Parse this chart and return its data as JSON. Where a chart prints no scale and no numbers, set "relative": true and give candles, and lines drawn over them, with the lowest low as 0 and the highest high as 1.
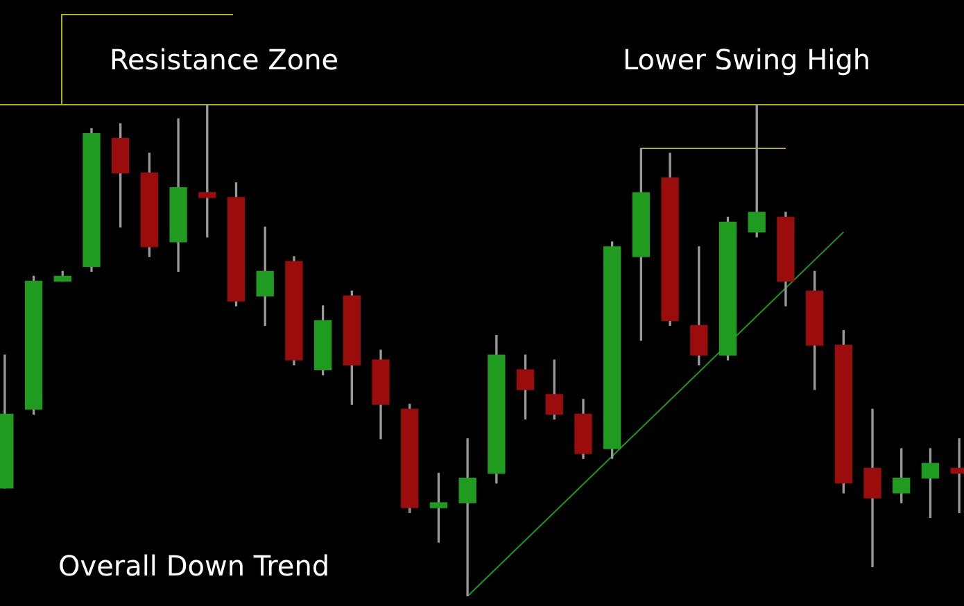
{
  "chart_data": {
    "type": "candlestick",
    "relative": true,
    "categories": [
      null,
      null,
      null,
      null,
      null,
      null,
      null,
      null,
      null,
      null,
      null,
      null,
      null,
      null,
      null,
      null,
      null,
      null,
      null,
      null,
      null,
      null,
      null,
      null,
      null,
      null,
      null,
      null,
      null,
      null,
      null,
      null,
      null,
      null
    ],
    "ohlc": [
      [
        0.22,
        0.49,
        0.22,
        0.37
      ],
      [
        0.38,
        0.65,
        0.37,
        0.64
      ],
      [
        0.64,
        0.66,
        0.64,
        0.65
      ],
      [
        0.67,
        0.95,
        0.66,
        0.94
      ],
      [
        0.93,
        0.96,
        0.75,
        0.86
      ],
      [
        0.86,
        0.9,
        0.69,
        0.71
      ],
      [
        0.72,
        0.97,
        0.66,
        0.83
      ],
      [
        0.82,
        1,
        0.73,
        0.81
      ],
      [
        0.81,
        0.84,
        0.59,
        0.6
      ],
      [
        0.61,
        0.75,
        0.55,
        0.66
      ],
      [
        0.68,
        0.69,
        0.47,
        0.48
      ],
      [
        0.46,
        0.59,
        0.45,
        0.56
      ],
      [
        0.61,
        0.62,
        0.39,
        0.47
      ],
      [
        0.48,
        0.5,
        0.32,
        0.39
      ],
      [
        0.38,
        0.39,
        0.17,
        0.18
      ],
      [
        0.18,
        0.25,
        0.11,
        0.19
      ],
      [
        0.19,
        0.32,
        0,
        0.24
      ],
      [
        0.25,
        0.53,
        0.23,
        0.49
      ],
      [
        0.46,
        0.49,
        0.36,
        0.42
      ],
      [
        0.41,
        0.48,
        0.36,
        0.37
      ],
      [
        0.37,
        0.4,
        0.28,
        0.29
      ],
      [
        0.3,
        0.72,
        0.28,
        0.71
      ],
      [
        0.69,
        0.91,
        0.52,
        0.82
      ],
      [
        0.85,
        0.9,
        0.55,
        0.56
      ],
      [
        0.55,
        0.71,
        0.47,
        0.49
      ],
      [
        0.49,
        0.77,
        0.48,
        0.76
      ],
      [
        0.74,
        1,
        0.73,
        0.78
      ],
      [
        0.77,
        0.78,
        0.59,
        0.64
      ],
      [
        0.62,
        0.66,
        0.42,
        0.51
      ],
      [
        0.51,
        0.54,
        0.21,
        0.23
      ],
      [
        0.26,
        0.38,
        0.06,
        0.2
      ],
      [
        0.21,
        0.3,
        0.19,
        0.24
      ],
      [
        0.24,
        0.3,
        0.16,
        0.27
      ],
      [
        0.26,
        0.32,
        0.17,
        0.25
      ]
    ],
    "colors": [
      "#1f9c1f",
      "#1f9c1f",
      "#1f9c1f",
      "#1f9c1f",
      "#9b0c0c",
      "#9b0c0c",
      "#1f9c1f",
      "#9b0c0c",
      "#9b0c0c",
      "#1f9c1f",
      "#9b0c0c",
      "#1f9c1f",
      "#9b0c0c",
      "#9b0c0c",
      "#9b0c0c",
      "#1f9c1f",
      "#1f9c1f",
      "#1f9c1f",
      "#9b0c0c",
      "#9b0c0c",
      "#9b0c0c",
      "#1f9c1f",
      "#1f9c1f",
      "#9b0c0c",
      "#9b0c0c",
      "#1f9c1f",
      "#1f9c1f",
      "#9b0c0c",
      "#9b0c0c",
      "#9b0c0c",
      "#9b0c0c",
      "#1f9c1f",
      "#1f9c1f",
      "#9b0c0c"
    ],
    "series": [
      {
        "type": "line",
        "color": "#1a9a1a",
        "values": [
          null,
          null,
          null,
          null,
          null,
          null,
          null,
          null,
          null,
          null,
          null,
          null,
          null,
          null,
          null,
          null,
          0,
          null,
          null,
          null,
          null,
          null,
          null,
          null,
          null,
          null,
          null,
          null,
          null,
          0.74,
          null,
          null,
          null,
          null
        ]
      },
      {
        "type": "line",
        "color": "#b4b400",
        "values": [
          null,
          null,
          null,
          null,
          null,
          null,
          null,
          null,
          null,
          null,
          null,
          null,
          null,
          null,
          null,
          null,
          null,
          null,
          null,
          null,
          null,
          null,
          0.91,
          null,
          null,
          null,
          null,
          0.91,
          null,
          null,
          null,
          null,
          null,
          null
        ]
      }
    ],
    "ref_lines": [
      {
        "axis": "y",
        "value": 1,
        "color": "#b4b400"
      }
    ],
    "annotations": [
      "Resistance Zone",
      "Lower Swing High",
      "Overall Down Trend"
    ]
  }
}
